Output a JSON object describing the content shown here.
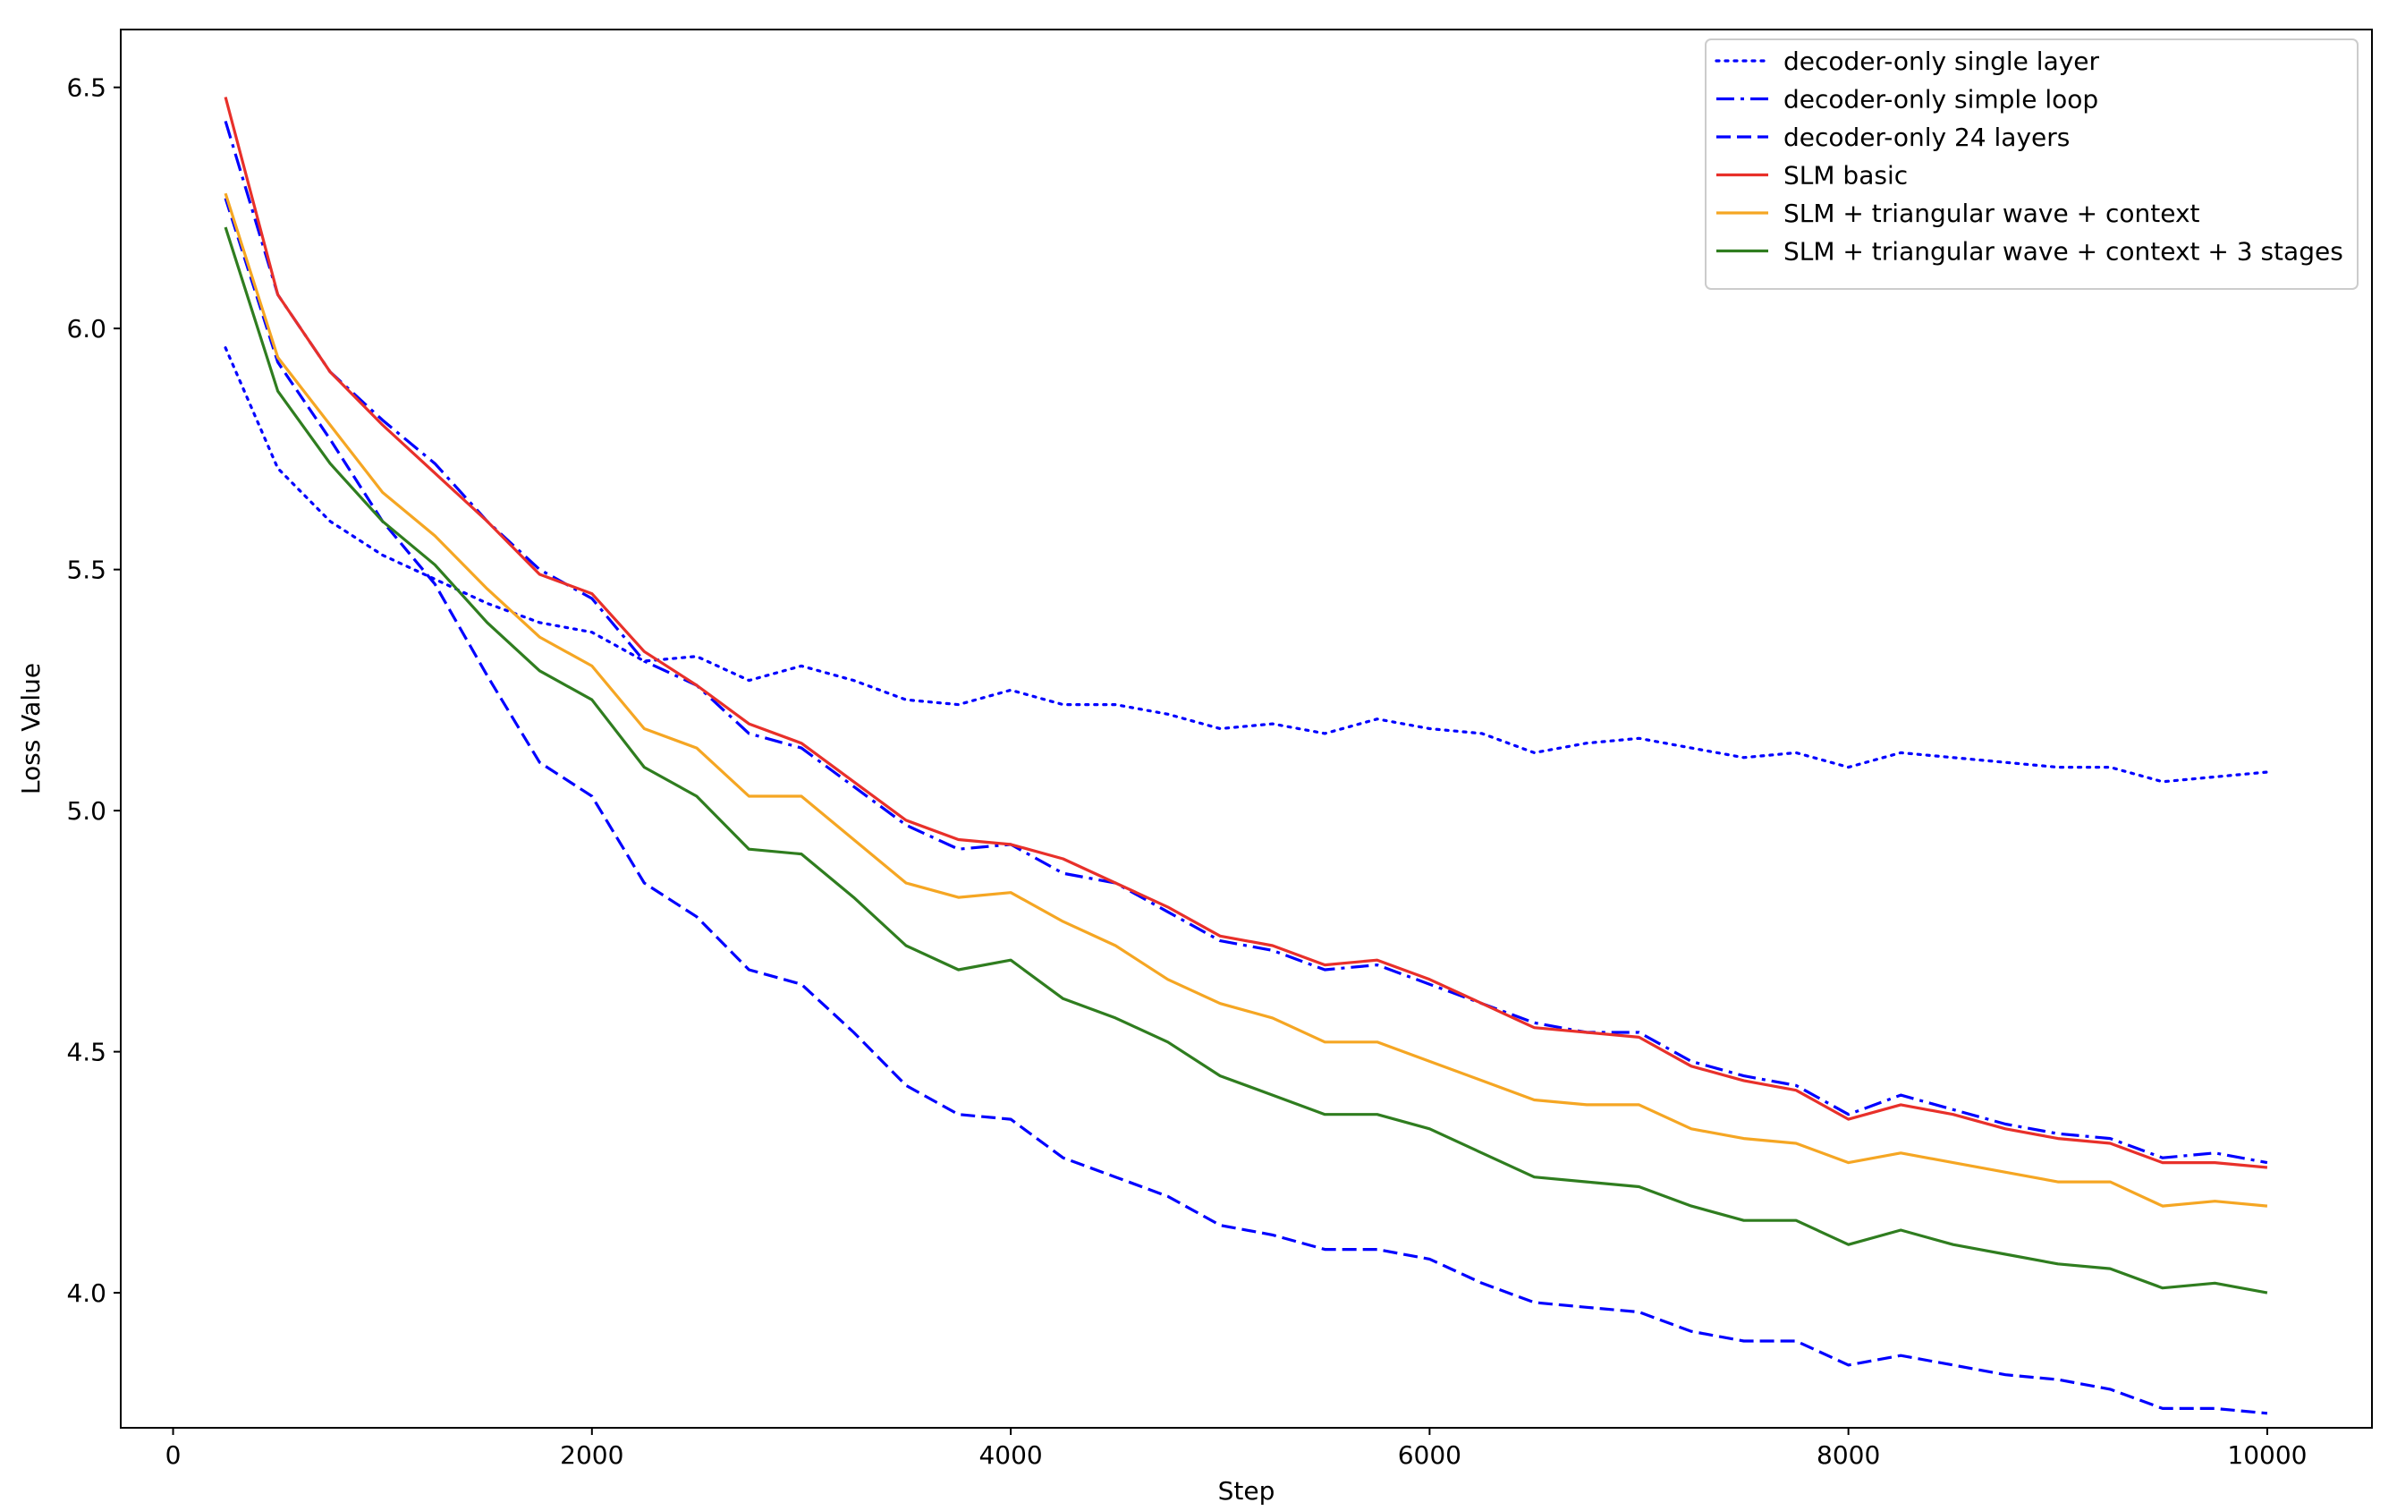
{
  "chart_data": {
    "type": "line",
    "title": "",
    "xlabel": "Step",
    "ylabel": "Loss Value",
    "xlim": [
      -250,
      10500
    ],
    "ylim": [
      3.72,
      6.62
    ],
    "xticks": [
      0,
      2000,
      4000,
      6000,
      8000,
      10000
    ],
    "yticks": [
      4.0,
      4.5,
      5.0,
      5.5,
      6.0,
      6.5
    ],
    "xtick_labels": [
      "0",
      "2000",
      "4000",
      "6000",
      "8000",
      "10000"
    ],
    "ytick_labels": [
      "4.0",
      "4.5",
      "5.0",
      "5.5",
      "6.0",
      "6.5"
    ],
    "grid": false,
    "legend_position": "upper right",
    "x": [
      250,
      500,
      750,
      1000,
      1250,
      1500,
      1750,
      2000,
      2250,
      2500,
      2750,
      3000,
      3250,
      3500,
      3750,
      4000,
      4250,
      4500,
      4750,
      5000,
      5250,
      5500,
      5750,
      6000,
      6250,
      6500,
      6750,
      7000,
      7250,
      7500,
      7750,
      8000,
      8250,
      8500,
      8750,
      9000,
      9250,
      9500,
      9750,
      10000
    ],
    "series": [
      {
        "name": "decoder-only single layer",
        "color": "#0000ff",
        "style": "dotted",
        "values": [
          5.96,
          5.71,
          5.6,
          5.53,
          5.48,
          5.43,
          5.39,
          5.37,
          5.31,
          5.32,
          5.27,
          5.3,
          5.27,
          5.23,
          5.22,
          5.25,
          5.22,
          5.22,
          5.2,
          5.17,
          5.18,
          5.16,
          5.19,
          5.17,
          5.16,
          5.12,
          5.14,
          5.15,
          5.13,
          5.11,
          5.12,
          5.09,
          5.12,
          5.11,
          5.1,
          5.09,
          5.09,
          5.06,
          5.07,
          5.08
        ]
      },
      {
        "name": "decoder-only simple loop",
        "color": "#0000ff",
        "style": "dashdot",
        "values": [
          6.43,
          6.07,
          5.91,
          5.81,
          5.72,
          5.6,
          5.5,
          5.44,
          5.31,
          5.26,
          5.16,
          5.13,
          5.05,
          4.97,
          4.92,
          4.93,
          4.87,
          4.85,
          4.79,
          4.73,
          4.71,
          4.67,
          4.68,
          4.64,
          4.6,
          4.56,
          4.54,
          4.54,
          4.48,
          4.45,
          4.43,
          4.37,
          4.41,
          4.38,
          4.35,
          4.33,
          4.32,
          4.28,
          4.29,
          4.27
        ]
      },
      {
        "name": "decoder-only 24 layers",
        "color": "#0000ff",
        "style": "dashed",
        "values": [
          6.27,
          5.93,
          5.77,
          5.6,
          5.47,
          5.28,
          5.1,
          5.03,
          4.85,
          4.78,
          4.67,
          4.64,
          4.54,
          4.43,
          4.37,
          4.36,
          4.28,
          4.24,
          4.2,
          4.14,
          4.12,
          4.09,
          4.09,
          4.07,
          4.02,
          3.98,
          3.97,
          3.96,
          3.92,
          3.9,
          3.9,
          3.85,
          3.87,
          3.85,
          3.83,
          3.82,
          3.8,
          3.76,
          3.76,
          3.75
        ]
      },
      {
        "name": "SLM basic",
        "color": "#e8302a",
        "style": "solid",
        "values": [
          6.48,
          6.07,
          5.91,
          5.8,
          5.7,
          5.6,
          5.49,
          5.45,
          5.33,
          5.26,
          5.18,
          5.14,
          5.06,
          4.98,
          4.94,
          4.93,
          4.9,
          4.85,
          4.8,
          4.74,
          4.72,
          4.68,
          4.69,
          4.65,
          4.6,
          4.55,
          4.54,
          4.53,
          4.47,
          4.44,
          4.42,
          4.36,
          4.39,
          4.37,
          4.34,
          4.32,
          4.31,
          4.27,
          4.27,
          4.26
        ]
      },
      {
        "name": "SLM + triangular wave + context",
        "color": "#f5a623",
        "style": "solid",
        "values": [
          6.28,
          5.94,
          5.8,
          5.66,
          5.57,
          5.46,
          5.36,
          5.3,
          5.17,
          5.13,
          5.03,
          5.03,
          4.94,
          4.85,
          4.82,
          4.83,
          4.77,
          4.72,
          4.65,
          4.6,
          4.57,
          4.52,
          4.52,
          4.48,
          4.44,
          4.4,
          4.39,
          4.39,
          4.34,
          4.32,
          4.31,
          4.27,
          4.29,
          4.27,
          4.25,
          4.23,
          4.23,
          4.18,
          4.19,
          4.18
        ]
      },
      {
        "name": "SLM + triangular wave + context + 3 stages",
        "color": "#2f7d1f",
        "style": "solid",
        "values": [
          6.21,
          5.87,
          5.72,
          5.6,
          5.51,
          5.39,
          5.29,
          5.23,
          5.09,
          5.03,
          4.92,
          4.91,
          4.82,
          4.72,
          4.67,
          4.69,
          4.61,
          4.57,
          4.52,
          4.45,
          4.41,
          4.37,
          4.37,
          4.34,
          4.29,
          4.24,
          4.23,
          4.22,
          4.18,
          4.15,
          4.15,
          4.1,
          4.13,
          4.1,
          4.08,
          4.06,
          4.05,
          4.01,
          4.02,
          4.0
        ]
      }
    ]
  }
}
